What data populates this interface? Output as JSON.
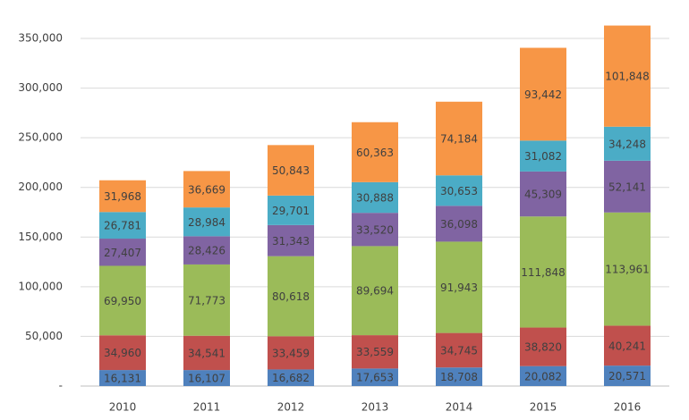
{
  "chart_data": {
    "type": "stacked_bar",
    "categories": [
      "2010",
      "2011",
      "2012",
      "2013",
      "2014",
      "2015",
      "2016"
    ],
    "ylim": [
      0,
      380000
    ],
    "yticks": [
      {
        "value": 0,
        "label": "-"
      },
      {
        "value": 50000,
        "label": "50,000"
      },
      {
        "value": 100000,
        "label": "100,000"
      },
      {
        "value": 150000,
        "label": "150,000"
      },
      {
        "value": 200000,
        "label": "200,000"
      },
      {
        "value": 250000,
        "label": "250,000"
      },
      {
        "value": 300000,
        "label": "300,000"
      },
      {
        "value": 350000,
        "label": "350,000"
      }
    ],
    "grid": true,
    "series": [
      {
        "color": "#4f81bd",
        "values": [
          16131,
          16107,
          16682,
          17653,
          18708,
          20082,
          20571
        ],
        "value_labels": [
          "16,131",
          "16,107",
          "16,682",
          "17,653",
          "18,708",
          "20,082",
          "20,571"
        ]
      },
      {
        "color": "#c0504d",
        "values": [
          34960,
          34541,
          33459,
          33559,
          34745,
          38820,
          40241
        ],
        "value_labels": [
          "34,960",
          "34,541",
          "33,459",
          "33,559",
          "34,745",
          "38,820",
          "40,241"
        ]
      },
      {
        "color": "#9bbb59",
        "values": [
          69950,
          71773,
          80618,
          89694,
          91943,
          111848,
          113961
        ],
        "value_labels": [
          "69,950",
          "71,773",
          "80,618",
          "89,694",
          "91,943",
          "111,848",
          "113,961"
        ]
      },
      {
        "color": "#8064a2",
        "values": [
          27407,
          28426,
          31343,
          33520,
          36098,
          45309,
          52141
        ],
        "value_labels": [
          "27,407",
          "28,426",
          "31,343",
          "33,520",
          "36,098",
          "45,309",
          "52,141"
        ]
      },
      {
        "color": "#4bacc6",
        "values": [
          26781,
          28984,
          29701,
          30888,
          30653,
          31082,
          34248
        ],
        "value_labels": [
          "26,781",
          "28,984",
          "29,701",
          "30,888",
          "30,653",
          "31,082",
          "34,248"
        ]
      },
      {
        "color": "#f79646",
        "values": [
          31968,
          36669,
          50843,
          60363,
          74184,
          93442,
          101848
        ],
        "value_labels": [
          "31,968",
          "36,669",
          "50,843",
          "60,363",
          "74,184",
          "93,442",
          "101,848"
        ]
      }
    ]
  }
}
